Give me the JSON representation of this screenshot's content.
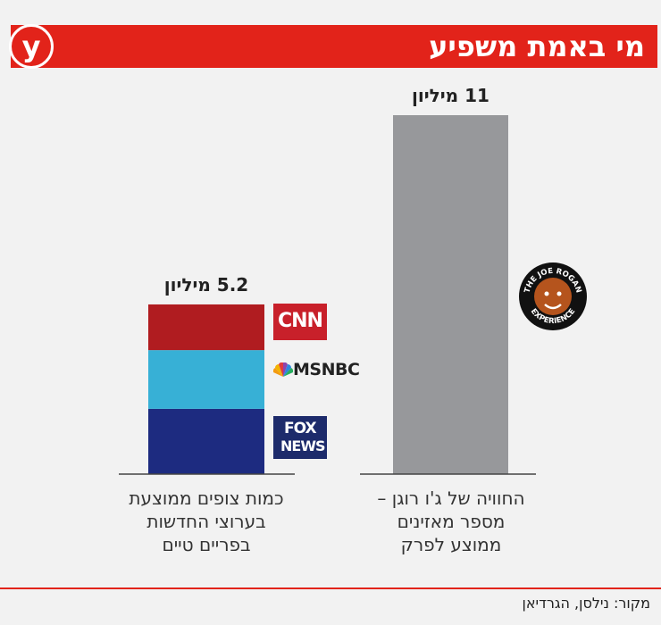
{
  "header": {
    "title": "מי באמת משפיע",
    "logo_letter": "y"
  },
  "chart_data": {
    "type": "bar",
    "title": "מי באמת משפיע",
    "unit": "מיליון",
    "categories": [
      "החוויה של ג'ו רוגן – מספר מאזינים ממוצע לפרק",
      "כמות צופים ממוצעת בערוצי החדשות בפריים טיים"
    ],
    "bars": [
      {
        "category": "החוויה של ג'ו רוגן – מספר מאזינים ממוצע לפרק",
        "label_lines": [
          "החוויה של ג'ו רוגן –",
          "מספר מאזינים",
          "ממוצע לפרק"
        ],
        "value": 11,
        "value_label": "11 מיליון",
        "color": "#97989b",
        "brand": "THE JOE ROGAN EXPERIENCE"
      },
      {
        "category": "כמות צופים ממוצעת בערוצי החדשות בפריים טיים",
        "label_lines": [
          "כמות צופים ממוצעת",
          "בערוצי החדשות",
          "בפריים טיים"
        ],
        "value": 5.2,
        "value_label": "5.2 מיליון",
        "segments": [
          {
            "name": "FOX NEWS",
            "value": 2.0,
            "color": "#1d2b80"
          },
          {
            "name": "MSNBC",
            "value": 1.8,
            "color": "#37b0d6"
          },
          {
            "name": "CNN",
            "value": 1.4,
            "color": "#b01c20"
          }
        ]
      }
    ],
    "ylim": [
      0,
      11
    ],
    "grid": false,
    "legend": "none"
  },
  "logos": {
    "cnn": "CNN",
    "msnbc": "MSNBC",
    "fox_line1": "FOX",
    "fox_line2": "NEWS",
    "rogan": "THE JOE ROGAN EXPERIENCE"
  },
  "footer": {
    "source": "מקור: נילסן, הגרדיאן"
  }
}
